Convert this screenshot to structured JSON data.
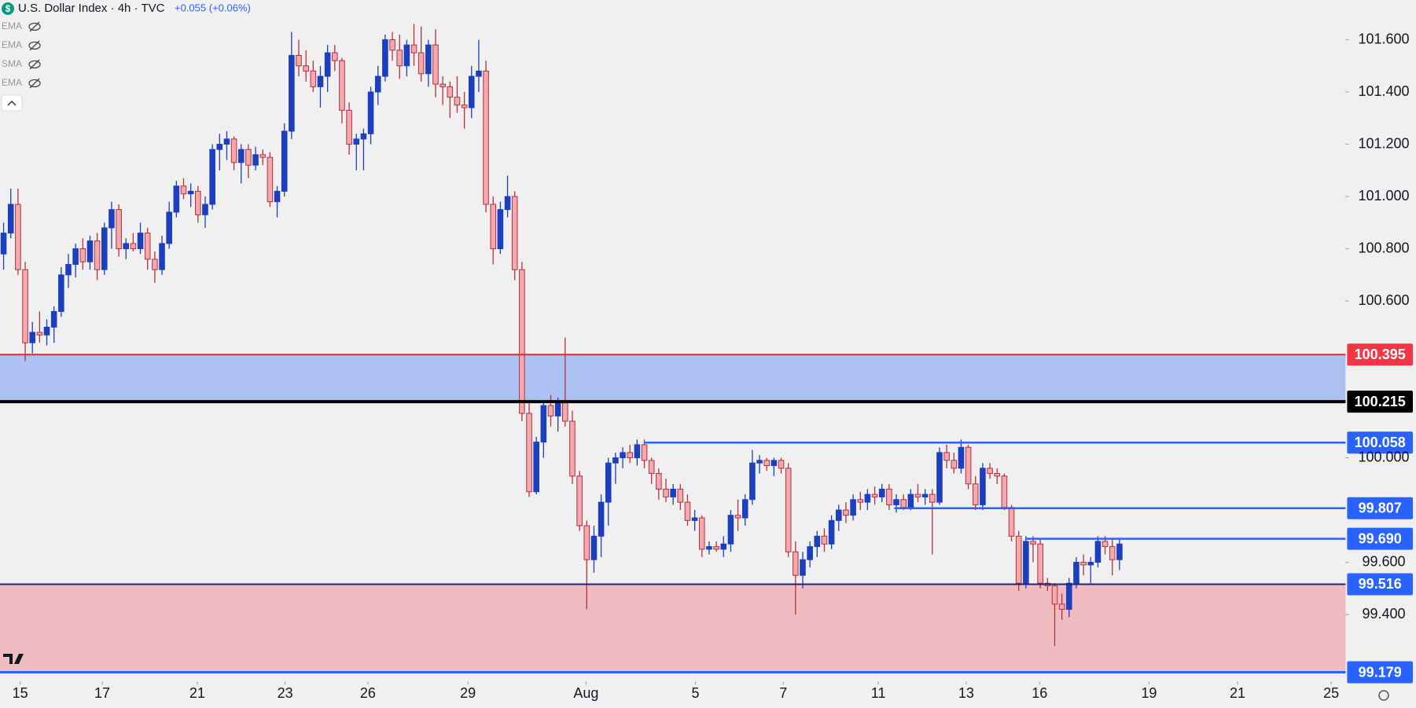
{
  "chart_data": {
    "type": "candlestick",
    "title": "U.S. Dollar Index · 4h · TVC",
    "change": "+0.055 (+0.06%)",
    "indicators": [
      "EMA",
      "EMA",
      "SMA",
      "EMA"
    ],
    "up_color": "#1c3fbf",
    "down_color": "#f2a9b0",
    "down_border": "#b3323c",
    "ylim": [
      99.144,
      101.752
    ],
    "xlim": [
      -0.5,
      186.4
    ],
    "yticks": [
      {
        "value": 99.4,
        "label": "99.400"
      },
      {
        "value": 99.6,
        "label": "99.600"
      },
      {
        "value": 100.0,
        "label": "100.000"
      },
      {
        "value": 100.6,
        "label": "100.600"
      },
      {
        "value": 100.8,
        "label": "100.800"
      },
      {
        "value": 101.0,
        "label": "101.000"
      },
      {
        "value": 101.2,
        "label": "101.200"
      },
      {
        "value": 101.4,
        "label": "101.400"
      },
      {
        "value": 101.6,
        "label": "101.600"
      }
    ],
    "xticks": [
      {
        "value": 2.3,
        "label": "15"
      },
      {
        "value": 13.7,
        "label": "17"
      },
      {
        "value": 26.9,
        "label": "21"
      },
      {
        "value": 39.1,
        "label": "23"
      },
      {
        "value": 50.6,
        "label": "26"
      },
      {
        "value": 64.5,
        "label": "29"
      },
      {
        "value": 80.9,
        "label": "Aug"
      },
      {
        "value": 96.1,
        "label": "5"
      },
      {
        "value": 108.3,
        "label": "7"
      },
      {
        "value": 121.5,
        "label": "11"
      },
      {
        "value": 133.7,
        "label": "13"
      },
      {
        "value": 143.9,
        "label": "16"
      },
      {
        "value": 159.1,
        "label": "19"
      },
      {
        "value": 171.4,
        "label": "21"
      },
      {
        "value": 184.4,
        "label": "25"
      }
    ],
    "zones": [
      {
        "from": 100.215,
        "to": 100.395,
        "color": "#adc1f2"
      },
      {
        "from": 99.179,
        "to": 99.516,
        "color": "#f0bcc2"
      }
    ],
    "levels": [
      {
        "value": 100.395,
        "label": "100.395",
        "color": "#d32f2f",
        "box": "#f23645",
        "width": 2,
        "x_start": null
      },
      {
        "value": 100.215,
        "label": "100.215",
        "color": "#000000",
        "box": "#000000",
        "width": 4,
        "x_start": null
      },
      {
        "value": 100.058,
        "label": "100.058",
        "color": "#2962ff",
        "box": "#2962ff",
        "width": 2.5,
        "x_start": 89
      },
      {
        "value": 99.807,
        "label": "99.807",
        "color": "#2962ff",
        "box": "#2962ff",
        "width": 2.5,
        "x_start": 123.7
      },
      {
        "value": 99.69,
        "label": "99.690",
        "color": "#2962ff",
        "box": "#2962ff",
        "width": 2.5,
        "x_start": 141.9
      },
      {
        "value": 99.516,
        "label": "99.516",
        "color": "#1a237e",
        "box": "#2962ff",
        "width": 2,
        "x_start": null
      },
      {
        "value": 99.179,
        "label": "99.179",
        "color": "#2962ff",
        "box": "#2962ff",
        "width": 3,
        "x_start": null
      }
    ],
    "ohlc": [
      [
        100.78,
        100.9,
        100.72,
        100.86
      ],
      [
        100.86,
        101.03,
        100.84,
        100.97
      ],
      [
        100.97,
        101.03,
        100.7,
        100.72
      ],
      [
        100.72,
        100.75,
        100.37,
        100.44
      ],
      [
        100.44,
        100.52,
        100.4,
        100.48
      ],
      [
        100.48,
        100.56,
        100.44,
        100.47
      ],
      [
        100.47,
        100.53,
        100.43,
        100.5
      ],
      [
        100.5,
        100.58,
        100.44,
        100.56
      ],
      [
        100.56,
        100.73,
        100.54,
        100.7
      ],
      [
        100.7,
        100.78,
        100.65,
        100.74
      ],
      [
        100.74,
        100.82,
        100.69,
        100.8
      ],
      [
        100.8,
        100.84,
        100.72,
        100.75
      ],
      [
        100.75,
        100.85,
        100.72,
        100.83
      ],
      [
        100.83,
        100.86,
        100.68,
        100.72
      ],
      [
        100.72,
        100.9,
        100.7,
        100.88
      ],
      [
        100.88,
        100.98,
        100.8,
        100.95
      ],
      [
        100.95,
        100.97,
        100.77,
        100.8
      ],
      [
        100.8,
        100.84,
        100.76,
        100.82
      ],
      [
        100.82,
        100.86,
        100.79,
        100.8
      ],
      [
        100.8,
        100.9,
        100.78,
        100.86
      ],
      [
        100.86,
        100.88,
        100.72,
        100.76
      ],
      [
        100.76,
        100.79,
        100.67,
        100.72
      ],
      [
        100.72,
        100.85,
        100.7,
        100.82
      ],
      [
        100.82,
        100.98,
        100.8,
        100.94
      ],
      [
        100.94,
        101.06,
        100.92,
        101.04
      ],
      [
        101.04,
        101.07,
        100.99,
        101.01
      ],
      [
        101.01,
        101.05,
        100.96,
        101.02
      ],
      [
        101.02,
        101.04,
        100.9,
        100.93
      ],
      [
        100.93,
        101.0,
        100.88,
        100.97
      ],
      [
        100.97,
        101.2,
        100.95,
        101.18
      ],
      [
        101.18,
        101.24,
        101.1,
        101.2
      ],
      [
        101.2,
        101.25,
        101.14,
        101.22
      ],
      [
        101.22,
        101.23,
        101.1,
        101.13
      ],
      [
        101.13,
        101.2,
        101.05,
        101.18
      ],
      [
        101.18,
        101.2,
        101.07,
        101.12
      ],
      [
        101.12,
        101.19,
        101.1,
        101.16
      ],
      [
        101.16,
        101.18,
        101.12,
        101.15
      ],
      [
        101.15,
        101.17,
        100.96,
        100.98
      ],
      [
        100.98,
        101.04,
        100.92,
        101.02
      ],
      [
        101.02,
        101.28,
        101.0,
        101.25
      ],
      [
        101.25,
        101.63,
        101.22,
        101.54
      ],
      [
        101.54,
        101.6,
        101.46,
        101.5
      ],
      [
        101.5,
        101.56,
        101.44,
        101.48
      ],
      [
        101.48,
        101.52,
        101.4,
        101.42
      ],
      [
        101.42,
        101.5,
        101.34,
        101.46
      ],
      [
        101.46,
        101.58,
        101.4,
        101.55
      ],
      [
        101.55,
        101.58,
        101.48,
        101.52
      ],
      [
        101.52,
        101.53,
        101.28,
        101.33
      ],
      [
        101.33,
        101.36,
        101.16,
        101.2
      ],
      [
        101.2,
        101.24,
        101.1,
        101.22
      ],
      [
        101.22,
        101.26,
        101.1,
        101.24
      ],
      [
        101.24,
        101.42,
        101.2,
        101.4
      ],
      [
        101.4,
        101.5,
        101.35,
        101.46
      ],
      [
        101.46,
        101.62,
        101.44,
        101.6
      ],
      [
        101.6,
        101.63,
        101.52,
        101.56
      ],
      [
        101.56,
        101.62,
        101.45,
        101.5
      ],
      [
        101.5,
        101.6,
        101.46,
        101.58
      ],
      [
        101.58,
        101.66,
        101.5,
        101.55
      ],
      [
        101.55,
        101.65,
        101.44,
        101.47
      ],
      [
        101.47,
        101.6,
        101.42,
        101.58
      ],
      [
        101.58,
        101.64,
        101.38,
        101.43
      ],
      [
        101.43,
        101.46,
        101.35,
        101.42
      ],
      [
        101.42,
        101.44,
        101.3,
        101.38
      ],
      [
        101.38,
        101.46,
        101.32,
        101.35
      ],
      [
        101.35,
        101.4,
        101.26,
        101.34
      ],
      [
        101.34,
        101.5,
        101.3,
        101.46
      ],
      [
        101.46,
        101.6,
        101.4,
        101.48
      ],
      [
        101.48,
        101.52,
        100.94,
        100.97
      ],
      [
        100.97,
        101.0,
        100.74,
        100.8
      ],
      [
        100.8,
        100.98,
        100.78,
        100.95
      ],
      [
        100.95,
        101.08,
        100.92,
        101.0
      ],
      [
        101.0,
        101.02,
        100.68,
        100.72
      ],
      [
        100.72,
        100.75,
        100.14,
        100.17
      ],
      [
        100.17,
        100.22,
        99.85,
        99.87
      ],
      [
        99.87,
        100.08,
        99.86,
        100.06
      ],
      [
        100.06,
        100.22,
        100.0,
        100.2
      ],
      [
        100.2,
        100.24,
        100.12,
        100.16
      ],
      [
        100.16,
        100.23,
        100.1,
        100.21
      ],
      [
        100.21,
        100.46,
        100.12,
        100.14
      ],
      [
        100.14,
        100.18,
        99.9,
        99.93
      ],
      [
        99.93,
        99.95,
        99.72,
        99.74
      ],
      [
        99.74,
        99.76,
        99.42,
        99.61
      ],
      [
        99.61,
        99.74,
        99.56,
        99.7
      ],
      [
        99.7,
        99.86,
        99.62,
        99.83
      ],
      [
        99.83,
        100.0,
        99.74,
        99.98
      ],
      [
        99.98,
        100.02,
        99.9,
        100.0
      ],
      [
        100.0,
        100.04,
        99.96,
        100.02
      ],
      [
        100.02,
        100.05,
        99.98,
        100.0
      ],
      [
        100.0,
        100.07,
        99.97,
        100.05
      ],
      [
        100.05,
        100.07,
        99.96,
        99.99
      ],
      [
        99.99,
        100.0,
        99.9,
        99.94
      ],
      [
        99.94,
        99.96,
        99.84,
        99.88
      ],
      [
        99.88,
        99.92,
        99.83,
        99.85
      ],
      [
        99.85,
        99.9,
        99.82,
        99.88
      ],
      [
        99.88,
        99.9,
        99.8,
        99.83
      ],
      [
        99.83,
        99.86,
        99.74,
        99.76
      ],
      [
        99.76,
        99.8,
        99.72,
        99.77
      ],
      [
        99.77,
        99.78,
        99.62,
        99.65
      ],
      [
        99.65,
        99.68,
        99.63,
        99.66
      ],
      [
        99.66,
        99.68,
        99.64,
        99.65
      ],
      [
        99.65,
        99.7,
        99.62,
        99.67
      ],
      [
        99.67,
        99.8,
        99.64,
        99.78
      ],
      [
        99.78,
        99.84,
        99.72,
        99.77
      ],
      [
        99.77,
        99.86,
        99.74,
        99.84
      ],
      [
        99.84,
        100.03,
        99.82,
        99.98
      ],
      [
        99.98,
        100.01,
        99.94,
        99.99
      ],
      [
        99.99,
        100.0,
        99.95,
        99.97
      ],
      [
        99.97,
        100.0,
        99.93,
        99.99
      ],
      [
        99.99,
        100.0,
        99.94,
        99.96
      ],
      [
        99.96,
        99.98,
        99.62,
        99.64
      ],
      [
        99.64,
        99.68,
        99.4,
        99.55
      ],
      [
        99.55,
        99.64,
        99.5,
        99.61
      ],
      [
        99.61,
        99.68,
        99.58,
        99.66
      ],
      [
        99.66,
        99.72,
        99.62,
        99.7
      ],
      [
        99.7,
        99.73,
        99.64,
        99.67
      ],
      [
        99.67,
        99.78,
        99.65,
        99.76
      ],
      [
        99.76,
        99.82,
        99.72,
        99.8
      ],
      [
        99.8,
        99.83,
        99.75,
        99.78
      ],
      [
        99.78,
        99.86,
        99.76,
        99.84
      ],
      [
        99.84,
        99.87,
        99.8,
        99.83
      ],
      [
        99.83,
        99.88,
        99.8,
        99.86
      ],
      [
        99.86,
        99.89,
        99.82,
        99.85
      ],
      [
        99.85,
        99.9,
        99.83,
        99.88
      ],
      [
        99.88,
        99.9,
        99.8,
        99.82
      ],
      [
        99.82,
        99.86,
        99.79,
        99.84
      ],
      [
        99.84,
        99.86,
        99.8,
        99.81
      ],
      [
        99.81,
        99.88,
        99.8,
        99.86
      ],
      [
        99.86,
        99.9,
        99.83,
        99.85
      ],
      [
        99.85,
        99.88,
        99.82,
        99.86
      ],
      [
        99.86,
        99.88,
        99.63,
        99.83
      ],
      [
        99.83,
        100.04,
        99.82,
        100.02
      ],
      [
        100.02,
        100.05,
        99.96,
        99.99
      ],
      [
        99.99,
        100.02,
        99.94,
        99.96
      ],
      [
        99.96,
        100.07,
        99.94,
        100.04
      ],
      [
        100.04,
        100.05,
        99.88,
        99.9
      ],
      [
        99.9,
        99.93,
        99.8,
        99.82
      ],
      [
        99.82,
        99.98,
        99.8,
        99.96
      ],
      [
        99.96,
        99.98,
        99.92,
        99.94
      ],
      [
        99.94,
        99.96,
        99.9,
        99.93
      ],
      [
        99.93,
        99.94,
        99.8,
        99.81
      ],
      [
        99.81,
        99.82,
        99.68,
        99.7
      ],
      [
        99.7,
        99.72,
        99.49,
        99.52
      ],
      [
        99.52,
        99.7,
        99.5,
        99.68
      ],
      [
        99.68,
        99.7,
        99.6,
        99.67
      ],
      [
        99.67,
        99.69,
        99.5,
        99.52
      ],
      [
        99.52,
        99.54,
        99.49,
        99.51
      ],
      [
        99.51,
        99.52,
        99.28,
        99.44
      ],
      [
        99.44,
        99.48,
        99.38,
        99.42
      ],
      [
        99.42,
        99.54,
        99.39,
        99.52
      ],
      [
        99.52,
        99.62,
        99.5,
        99.6
      ],
      [
        99.6,
        99.63,
        99.55,
        99.59
      ],
      [
        99.59,
        99.62,
        99.52,
        99.6
      ],
      [
        99.6,
        99.7,
        99.58,
        99.68
      ],
      [
        99.68,
        99.7,
        99.63,
        99.66
      ],
      [
        99.66,
        99.69,
        99.55,
        99.61
      ],
      [
        99.61,
        99.69,
        99.57,
        99.67
      ]
    ]
  }
}
